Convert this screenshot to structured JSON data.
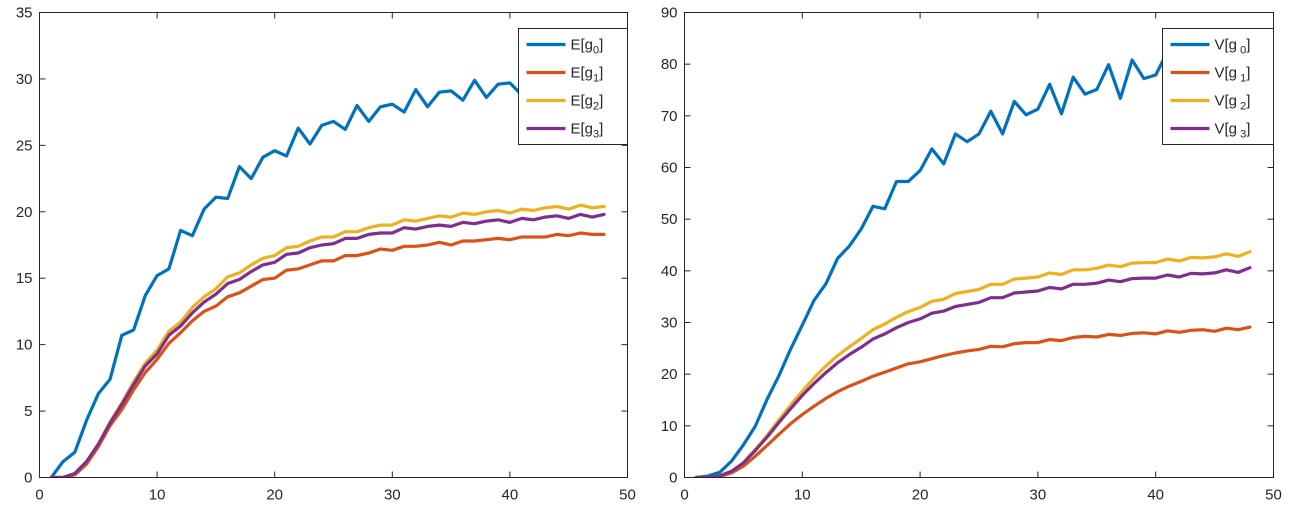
{
  "chart_data": [
    {
      "type": "line",
      "title": "",
      "xlabel": "",
      "ylabel": "",
      "xlim": [
        0,
        50
      ],
      "ylim": [
        0,
        35
      ],
      "xticks": [
        0,
        10,
        20,
        30,
        40,
        50
      ],
      "yticks": [
        0,
        5,
        10,
        15,
        20,
        25,
        30,
        35
      ],
      "grid": false,
      "legend_location": "top-right",
      "x": [
        1,
        2,
        3,
        4,
        5,
        6,
        7,
        8,
        9,
        10,
        11,
        12,
        13,
        14,
        15,
        16,
        17,
        18,
        19,
        20,
        21,
        22,
        23,
        24,
        25,
        26,
        27,
        28,
        29,
        30,
        31,
        32,
        33,
        34,
        35,
        36,
        37,
        38,
        39,
        40,
        41,
        42,
        43,
        44,
        45,
        46,
        47,
        48
      ],
      "series": [
        {
          "name": "E[g0]",
          "label_base": "E[g",
          "label_sub": "0",
          "label_end": "]",
          "color": "#0072BD",
          "values": [
            0,
            1.2,
            1.9,
            4.3,
            6.3,
            7.4,
            10.7,
            11.1,
            13.7,
            15.2,
            15.7,
            18.6,
            18.2,
            20.2,
            21.1,
            21.0,
            23.4,
            22.5,
            24.1,
            24.6,
            24.2,
            26.3,
            25.1,
            26.5,
            26.8,
            26.2,
            28.0,
            26.8,
            27.9,
            28.1,
            27.5,
            29.2,
            27.9,
            29.0,
            29.1,
            28.4,
            29.9,
            28.6,
            29.6,
            29.7,
            28.8,
            29.5,
            29.1,
            29.9,
            29.3,
            30.2,
            29.5,
            30.1
          ]
        },
        {
          "name": "E[g1]",
          "label_base": "E[g",
          "label_sub": "1",
          "label_end": "]",
          "color": "#D95319",
          "values": [
            0,
            0,
            0.2,
            1.0,
            2.3,
            3.9,
            5.1,
            6.6,
            7.9,
            8.9,
            10.1,
            10.9,
            11.8,
            12.5,
            12.9,
            13.6,
            13.9,
            14.4,
            14.9,
            15.0,
            15.6,
            15.7,
            16.0,
            16.3,
            16.3,
            16.7,
            16.7,
            16.9,
            17.2,
            17.1,
            17.4,
            17.4,
            17.5,
            17.7,
            17.5,
            17.8,
            17.8,
            17.9,
            18.0,
            17.9,
            18.1,
            18.1,
            18.1,
            18.3,
            18.2,
            18.4,
            18.3,
            18.3
          ]
        },
        {
          "name": "E[g2]",
          "label_base": "E[g",
          "label_sub": "2",
          "label_end": "]",
          "color": "#EDB120",
          "values": [
            0,
            0,
            0.3,
            1.2,
            2.5,
            4.2,
            5.6,
            7.2,
            8.6,
            9.6,
            11.0,
            11.7,
            12.8,
            13.6,
            14.2,
            15.1,
            15.4,
            16.0,
            16.5,
            16.7,
            17.3,
            17.4,
            17.8,
            18.1,
            18.1,
            18.5,
            18.5,
            18.8,
            19.0,
            19.0,
            19.4,
            19.3,
            19.5,
            19.7,
            19.6,
            19.9,
            19.8,
            20.0,
            20.1,
            19.9,
            20.2,
            20.1,
            20.3,
            20.4,
            20.2,
            20.5,
            20.3,
            20.4
          ]
        },
        {
          "name": "E[g3]",
          "label_base": "E[g",
          "label_sub": "3",
          "label_end": "]",
          "color": "#7E2F8E",
          "values": [
            0,
            0,
            0.3,
            1.2,
            2.5,
            4.1,
            5.5,
            7.0,
            8.4,
            9.3,
            10.7,
            11.4,
            12.4,
            13.2,
            13.8,
            14.6,
            14.9,
            15.5,
            16.0,
            16.2,
            16.8,
            16.9,
            17.3,
            17.5,
            17.6,
            18.0,
            18.0,
            18.3,
            18.4,
            18.4,
            18.8,
            18.7,
            18.9,
            19.0,
            18.9,
            19.2,
            19.1,
            19.3,
            19.4,
            19.2,
            19.5,
            19.4,
            19.6,
            19.7,
            19.5,
            19.8,
            19.6,
            19.8
          ]
        }
      ]
    },
    {
      "type": "line",
      "title": "",
      "xlabel": "",
      "ylabel": "",
      "xlim": [
        0,
        50
      ],
      "ylim": [
        0,
        90
      ],
      "xticks": [
        0,
        10,
        20,
        30,
        40,
        50
      ],
      "yticks": [
        0,
        10,
        20,
        30,
        40,
        50,
        60,
        70,
        80,
        90
      ],
      "grid": false,
      "legend_location": "top-right",
      "x": [
        1,
        2,
        3,
        4,
        5,
        6,
        7,
        8,
        9,
        10,
        11,
        12,
        13,
        14,
        15,
        16,
        17,
        18,
        19,
        20,
        21,
        22,
        23,
        24,
        25,
        26,
        27,
        28,
        29,
        30,
        31,
        32,
        33,
        34,
        35,
        36,
        37,
        38,
        39,
        40,
        41,
        42,
        43,
        44,
        45,
        46,
        47,
        48
      ],
      "series": [
        {
          "name": "V[g 0]",
          "label_base": "V[g",
          "label_sub": " 0",
          "label_end": "]",
          "color": "#0072BD",
          "values": [
            0,
            0.3,
            1.0,
            3.2,
            6.3,
            9.9,
            15.1,
            19.6,
            24.8,
            29.5,
            34.3,
            37.5,
            42.4,
            44.8,
            48.1,
            52.5,
            52.0,
            57.3,
            57.3,
            59.4,
            63.6,
            60.7,
            66.5,
            65.0,
            66.5,
            70.9,
            66.5,
            72.8,
            70.2,
            71.3,
            76.1,
            70.4,
            77.5,
            74.2,
            75.1,
            79.9,
            73.4,
            80.8,
            77.2,
            77.9,
            82.4,
            79.0,
            83.8,
            80.5,
            81.5,
            84.5,
            82.0,
            84.8
          ]
        },
        {
          "name": "V[g 1]",
          "label_base": "V[g",
          "label_sub": " 1",
          "label_end": "]",
          "color": "#D95319",
          "values": [
            0,
            0,
            0.2,
            0.9,
            2.2,
            4.1,
            6.2,
            8.3,
            10.4,
            12.2,
            13.8,
            15.3,
            16.6,
            17.7,
            18.6,
            19.6,
            20.4,
            21.2,
            22.0,
            22.4,
            23.0,
            23.6,
            24.1,
            24.5,
            24.8,
            25.4,
            25.3,
            25.9,
            26.1,
            26.1,
            26.7,
            26.5,
            27.1,
            27.3,
            27.2,
            27.7,
            27.5,
            27.9,
            28.0,
            27.8,
            28.4,
            28.1,
            28.5,
            28.6,
            28.3,
            28.9,
            28.6,
            29.1
          ]
        },
        {
          "name": "V[g 2]",
          "label_base": "V[g",
          "label_sub": " 2",
          "label_end": "]",
          "color": "#EDB120",
          "values": [
            0,
            0,
            0.3,
            1.2,
            2.9,
            5.4,
            8.1,
            11.1,
            14.0,
            16.7,
            19.3,
            21.6,
            23.6,
            25.3,
            26.9,
            28.6,
            29.7,
            31.0,
            32.1,
            32.9,
            34.1,
            34.5,
            35.6,
            36.0,
            36.4,
            37.4,
            37.4,
            38.4,
            38.6,
            38.8,
            39.6,
            39.3,
            40.2,
            40.2,
            40.5,
            41.1,
            40.8,
            41.5,
            41.6,
            41.6,
            42.3,
            41.9,
            42.6,
            42.5,
            42.7,
            43.3,
            42.8,
            43.7
          ]
        },
        {
          "name": "V[g 3]",
          "label_base": "V[g",
          "label_sub": " 3",
          "label_end": "]",
          "color": "#7E2F8E",
          "values": [
            0,
            0,
            0.3,
            1.2,
            2.8,
            5.2,
            7.8,
            10.6,
            13.3,
            15.9,
            18.2,
            20.3,
            22.2,
            23.8,
            25.2,
            26.8,
            27.8,
            29.0,
            30.0,
            30.7,
            31.8,
            32.2,
            33.1,
            33.5,
            33.9,
            34.8,
            34.8,
            35.7,
            35.9,
            36.1,
            36.8,
            36.5,
            37.4,
            37.4,
            37.6,
            38.2,
            37.9,
            38.5,
            38.6,
            38.6,
            39.2,
            38.8,
            39.5,
            39.4,
            39.6,
            40.2,
            39.7,
            40.6
          ]
        }
      ]
    }
  ]
}
